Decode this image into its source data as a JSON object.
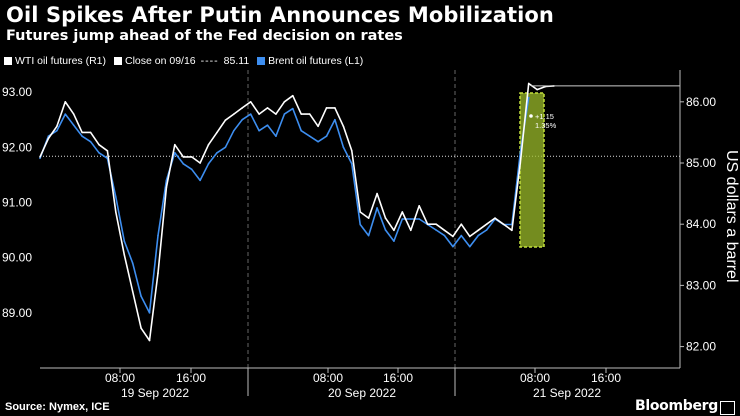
{
  "title": "Oil Spikes After Putin Announces Mobilization",
  "subtitle": "Futures jump ahead of the Fed decision on rates",
  "legend": {
    "wti": "WTI oil futures (R1)",
    "close": "Close on 09/16",
    "close_dash": "----",
    "close_value": "85.11",
    "brent": "Brent oil futures (L1)"
  },
  "colors": {
    "wti": "#ffffff",
    "brent": "#3d8ef0",
    "highlight_fill": "#9bbb2a",
    "highlight_stroke": "#c3e03c",
    "background": "#000000"
  },
  "source": "Source: Nymex, ICE",
  "brand": "Bloomberg",
  "chart_data": {
    "type": "line",
    "title": "Oil Spikes After Putin Announces Mobilization",
    "subtitle": "Futures jump ahead of the Fed decision on rates",
    "left_axis": {
      "ticks": [
        "89.00",
        "90.00",
        "91.00",
        "92.00",
        "93.00"
      ],
      "range": [
        88.0,
        93.4
      ]
    },
    "right_axis": {
      "label": "US dollars a barrel",
      "ticks": [
        "82.00",
        "83.00",
        "84.00",
        "85.00",
        "86.00"
      ],
      "range": [
        81.65,
        86.52
      ]
    },
    "x_axis": {
      "time_ticks": [
        "08:00",
        "16:00",
        "08:00",
        "16:00",
        "08:00",
        "16:00"
      ],
      "day_labels": [
        "19 Sep 2022",
        "20 Sep 2022",
        "21 Sep 2022"
      ]
    },
    "reference_line": {
      "name": "Close on 09/16",
      "value": 85.11,
      "axis": "right"
    },
    "annotation": {
      "change": "+1.15",
      "percent": "1.35%",
      "last_value": 86.26
    },
    "series": [
      {
        "name": "WTI oil futures (R1)",
        "axis": "right",
        "x": [
          0,
          2,
          4,
          6,
          8,
          10,
          12,
          14,
          16,
          18,
          20,
          22,
          24,
          26,
          28,
          30,
          32,
          34,
          36,
          38,
          40,
          42,
          44,
          46,
          48,
          50,
          52,
          54,
          56,
          58,
          60,
          62,
          64,
          66,
          68,
          70,
          72,
          74,
          76,
          78,
          80,
          82,
          84,
          86,
          88,
          90,
          92,
          94,
          96,
          98,
          100,
          102,
          104,
          106,
          108,
          110,
          112,
          114,
          116,
          118,
          120,
          122,
          124,
          126,
          128,
          130,
          132,
          134,
          136,
          138,
          140,
          142,
          144,
          146,
          148,
          150
        ],
        "y": [
          85.1,
          85.4,
          85.6,
          86.0,
          85.8,
          85.5,
          85.5,
          85.3,
          85.2,
          84.2,
          83.5,
          82.9,
          82.3,
          82.1,
          83.2,
          84.6,
          85.3,
          85.1,
          85.1,
          85.0,
          85.3,
          85.5,
          85.7,
          85.8,
          85.9,
          86.0,
          85.8,
          85.9,
          85.8,
          86.0,
          86.1,
          85.8,
          85.8,
          85.6,
          85.9,
          85.9,
          85.6,
          85.2,
          84.2,
          84.1,
          84.5,
          84.1,
          83.9,
          84.2,
          83.9,
          84.3,
          84.0,
          84.0,
          83.9,
          83.8,
          84.0,
          83.8,
          83.9,
          84.0,
          84.1,
          84.0,
          83.9,
          85.0,
          86.3,
          86.2,
          86.25,
          86.26,
          null,
          null,
          null,
          null,
          null,
          null,
          null,
          null,
          null,
          null,
          null,
          null,
          null,
          null
        ]
      },
      {
        "name": "Brent oil futures (L1)",
        "axis": "left",
        "x": [
          0,
          2,
          4,
          6,
          8,
          10,
          12,
          14,
          16,
          18,
          20,
          22,
          24,
          26,
          28,
          30,
          32,
          34,
          36,
          38,
          40,
          42,
          44,
          46,
          48,
          50,
          52,
          54,
          56,
          58,
          60,
          62,
          64,
          66,
          68,
          70,
          72,
          74,
          76,
          78,
          80,
          82,
          84,
          86,
          88,
          90,
          92,
          94,
          96,
          98,
          100,
          102,
          104,
          106,
          108,
          110,
          112,
          114,
          116,
          118,
          120,
          122,
          124,
          126,
          128,
          130,
          132,
          134,
          136,
          138,
          140,
          142,
          144,
          146,
          148,
          150
        ],
        "y": [
          91.8,
          92.2,
          92.3,
          92.6,
          92.4,
          92.2,
          92.1,
          91.9,
          91.8,
          91.1,
          90.3,
          89.9,
          89.3,
          89.0,
          90.4,
          91.4,
          91.9,
          91.7,
          91.6,
          91.4,
          91.7,
          91.9,
          92.0,
          92.3,
          92.5,
          92.6,
          92.3,
          92.4,
          92.2,
          92.6,
          92.7,
          92.3,
          92.2,
          92.1,
          92.2,
          92.5,
          92.0,
          91.7,
          90.6,
          90.4,
          90.9,
          90.5,
          90.3,
          90.7,
          90.7,
          90.7,
          90.6,
          90.5,
          90.4,
          90.2,
          90.4,
          90.2,
          90.4,
          90.5,
          90.7,
          90.6,
          90.6,
          91.9,
          92.9,
          null,
          null,
          null,
          null,
          null,
          null,
          null,
          null,
          null,
          null,
          null,
          null,
          null,
          null,
          null,
          null,
          null
        ]
      }
    ],
    "grid": false,
    "legend_position": "top-left"
  }
}
